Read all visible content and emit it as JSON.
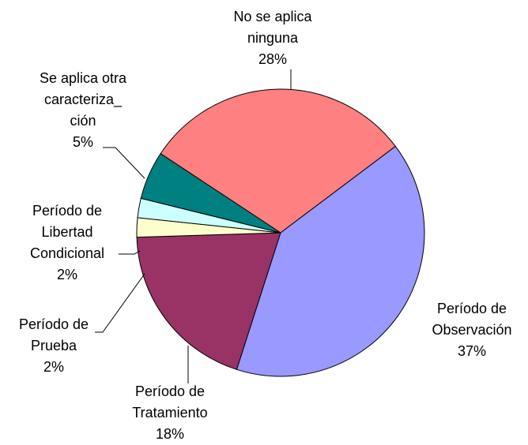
{
  "chart_data": {
    "type": "pie",
    "categories": [
      "No se aplica\nninguna",
      "Período de\nObservación",
      "Período de\nTratamiento",
      "Período de\nPrueba",
      "Período de\nLibertad\nCondicional",
      "Se aplica otra\ncaracteriza_\nción"
    ],
    "values": [
      28,
      37,
      18,
      2,
      2,
      5
    ],
    "value_labels": [
      "28%",
      "37%",
      "18%",
      "2%",
      "2%",
      "5%"
    ],
    "colors": [
      "#ff8080",
      "#9999ff",
      "#993366",
      "#ffffcc",
      "#ccffff",
      "#008080"
    ]
  }
}
